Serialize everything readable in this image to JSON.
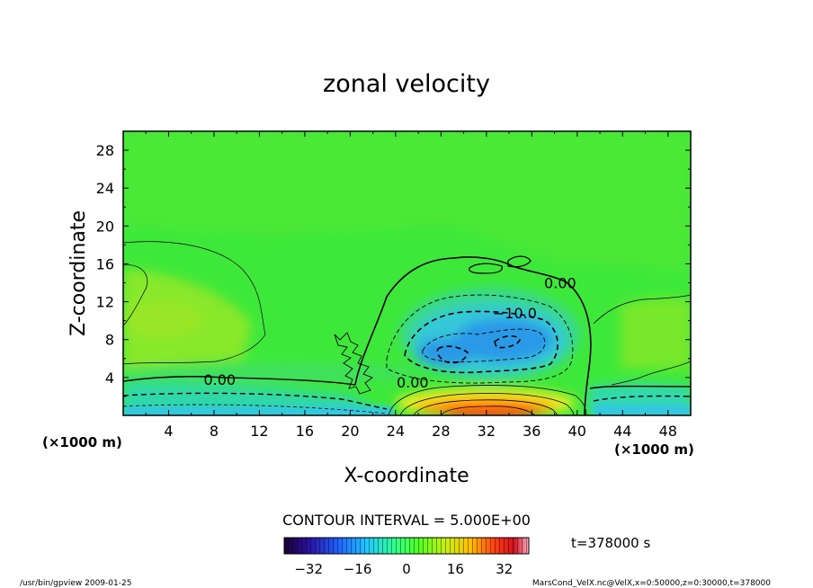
{
  "chart_data": {
    "type": "heatmap",
    "title": "zonal velocity",
    "xlabel": "X-coordinate",
    "ylabel": "Z-coordinate",
    "x_unit_left": "(×1000 m)",
    "x_unit_right": "(×1000 m)",
    "xlim": [
      0,
      50
    ],
    "ylim": [
      0,
      30
    ],
    "x_ticks": [
      4,
      8,
      12,
      16,
      20,
      24,
      28,
      32,
      36,
      40,
      44,
      48
    ],
    "y_ticks": [
      4,
      8,
      12,
      16,
      20,
      24,
      28
    ],
    "contour_interval_text": "CONTOUR INTERVAL = 5.000E+00",
    "time_label": "t=378000 s",
    "colorbar": {
      "min": -40,
      "max": 40,
      "ticks": [
        -32,
        -16,
        0,
        16,
        32
      ],
      "tick_labels": [
        "−32",
        "−16",
        "0",
        "16",
        "32"
      ]
    },
    "contour_labels": [
      {
        "text": "0.00",
        "x": 8.5,
        "y": 3.8
      },
      {
        "text": "0.00",
        "x": 25.5,
        "y": 3.5
      },
      {
        "text": "0.00",
        "x": 38.5,
        "y": 14.0
      },
      {
        "text": "−10.0",
        "x": 34.5,
        "y": 10.8
      }
    ],
    "features": [
      {
        "name": "min",
        "x": 33,
        "y": 7.5,
        "value": -20
      },
      {
        "name": "max",
        "x": 32,
        "y": 0.5,
        "value": 38
      }
    ]
  },
  "footer": {
    "left": "/usr/bin/gpview  2009-01-25",
    "right": "MarsCond_VelX.nc@VelX,x=0:50000,z=0:30000,t=378000"
  }
}
